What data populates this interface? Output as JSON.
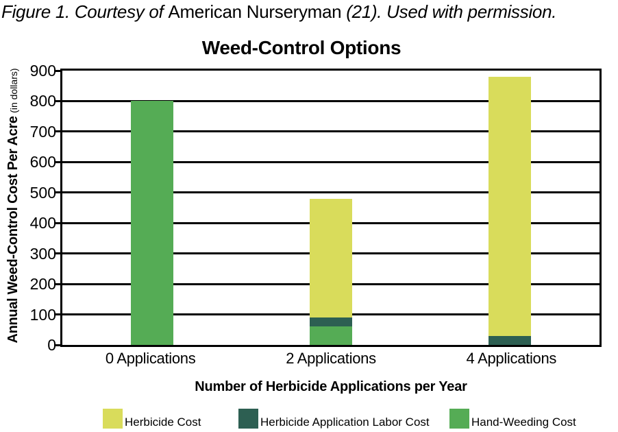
{
  "caption": {
    "italic_start": "Figure 1. Courtesy of ",
    "upright": "American Nurseryman ",
    "italic_end": "(21). Used with permission."
  },
  "chart_data": {
    "type": "bar",
    "stacked": true,
    "stack_order": "bottom-up",
    "title": "Weed-Control Options",
    "xlabel": "Number of Herbicide Applications per Year",
    "ylabel": "Annual Weed-Control Cost Per Acre",
    "ylabel_unit": "(in dollars)",
    "categories": [
      "0 Applications",
      "2 Applications",
      "4 Applications"
    ],
    "series": [
      {
        "name": "Hand-Weeding Cost",
        "color": "#55ac55",
        "values": [
          800,
          60,
          0
        ]
      },
      {
        "name": "Herbicide Application Labor Cost",
        "color": "#2d5f52",
        "values": [
          0,
          30,
          30
        ]
      },
      {
        "name": "Herbicide Cost",
        "color": "#d9dc5b",
        "values": [
          0,
          390,
          850
        ]
      }
    ],
    "totals": [
      800,
      480,
      880
    ],
    "ylim": [
      0,
      900
    ],
    "yticks": [
      0,
      100,
      200,
      300,
      400,
      500,
      600,
      700,
      800,
      900
    ],
    "grid": true,
    "grid_color": "#000000",
    "legend_position": "bottom",
    "legend": [
      {
        "label": "Herbicide Cost",
        "color": "#d9dc5b"
      },
      {
        "label": "Herbicide Application Labor Cost",
        "color": "#2d5f52"
      },
      {
        "label": "Hand-Weeding Cost",
        "color": "#55ac55"
      }
    ]
  }
}
